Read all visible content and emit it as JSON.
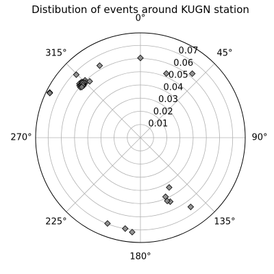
{
  "chart_data": {
    "type": "scatter",
    "projection": "polar",
    "title": "Distibution of events around KUGN station",
    "theta_zero_location": "N",
    "theta_direction": "clockwise",
    "theta_tick_labels": [
      "0°",
      "45°",
      "90°",
      "135°",
      "180°",
      "225°",
      "270°",
      "315°"
    ],
    "theta_ticks_deg": [
      0,
      45,
      90,
      135,
      180,
      225,
      270,
      315
    ],
    "r_tick_labels": [
      "0.01",
      "0.02",
      "0.03",
      "0.04",
      "0.05",
      "0.06",
      "0.07"
    ],
    "r_ticks": [
      0.01,
      0.02,
      0.03,
      0.04,
      0.05,
      0.06,
      0.07
    ],
    "rlim": [
      0,
      0.0795
    ],
    "grid": true,
    "marker": "diamond",
    "marker_color": "#808080",
    "marker_edge_color": "#000000",
    "points": [
      {
        "theta": 0,
        "r": 0.0605
      },
      {
        "theta": 22,
        "r": 0.0525
      },
      {
        "theta": 39,
        "r": 0.0625
      },
      {
        "theta": 330.5,
        "r": 0.0628
      },
      {
        "theta": 314.5,
        "r": 0.0682
      },
      {
        "theta": 316,
        "r": 0.0605
      },
      {
        "theta": 315,
        "r": 0.059
      },
      {
        "theta": 313.5,
        "r": 0.0595
      },
      {
        "theta": 312,
        "r": 0.0605
      },
      {
        "theta": 313,
        "r": 0.0615
      },
      {
        "theta": 311.5,
        "r": 0.0618
      },
      {
        "theta": 310.5,
        "r": 0.0608
      },
      {
        "theta": 310,
        "r": 0.0595
      },
      {
        "theta": 312.5,
        "r": 0.0585
      },
      {
        "theta": 313.8,
        "r": 0.061
      },
      {
        "theta": 314.2,
        "r": 0.0598
      },
      {
        "theta": 311.2,
        "r": 0.0602
      },
      {
        "theta": 311.8,
        "r": 0.06
      },
      {
        "theta": 313.2,
        "r": 0.0603
      },
      {
        "theta": 312.2,
        "r": 0.0592
      },
      {
        "theta": 318,
        "r": 0.0575
      },
      {
        "theta": 310.8,
        "r": 0.0588
      },
      {
        "theta": 296.5,
        "r": 0.0769
      },
      {
        "theta": 296.2,
        "r": 0.0766
      },
      {
        "theta": 150,
        "r": 0.0436
      },
      {
        "theta": 157,
        "r": 0.0487
      },
      {
        "theta": 155,
        "r": 0.0535
      },
      {
        "theta": 144,
        "r": 0.0649
      },
      {
        "theta": 157,
        "r": 0.0521
      },
      {
        "theta": 201,
        "r": 0.0697
      },
      {
        "theta": 189.5,
        "r": 0.0699
      },
      {
        "theta": 185,
        "r": 0.0719
      }
    ]
  }
}
